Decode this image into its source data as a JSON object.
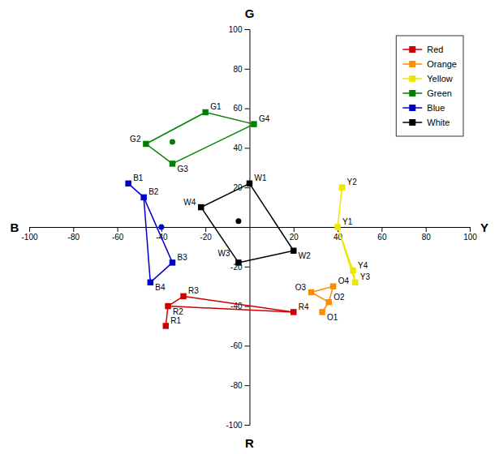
{
  "chart_data": {
    "type": "scatter",
    "xlabel_left": "B",
    "xlabel_right": "Y",
    "ylabel_top": "G",
    "ylabel_bottom": "R",
    "xlim": [
      -100,
      100
    ],
    "ylim": [
      -100,
      100
    ],
    "xticks": [
      -100,
      -80,
      -60,
      -40,
      -20,
      20,
      40,
      60,
      80,
      100
    ],
    "yticks": [
      -100,
      -80,
      -60,
      -40,
      -20,
      20,
      40,
      60,
      80,
      100
    ],
    "legend": "upper right",
    "series": [
      {
        "name": "Red",
        "color": "#cc0000",
        "marker": "square",
        "labels": [
          "R1",
          "R2",
          "R3",
          "R4"
        ],
        "x": [
          -38,
          -37,
          -30,
          20
        ],
        "values": [
          -50,
          -40,
          -35,
          -43
        ],
        "connections": [
          [
            "R1",
            "R2"
          ],
          [
            "R2",
            "R3"
          ],
          [
            "R2",
            "R4"
          ],
          [
            "R3",
            "R4"
          ]
        ]
      },
      {
        "name": "Orange",
        "color": "#ff8c00",
        "marker": "square",
        "labels": [
          "O1",
          "O2",
          "O3",
          "O4"
        ],
        "x": [
          33,
          36,
          28,
          38
        ],
        "values": [
          -43,
          -38,
          -33,
          -30
        ],
        "connections": [
          [
            "O1",
            "O2"
          ],
          [
            "O2",
            "O3"
          ],
          [
            "O3",
            "O4"
          ],
          [
            "O2",
            "O4"
          ]
        ]
      },
      {
        "name": "Yellow",
        "color": "#e8e800",
        "marker": "square",
        "labels": [
          "Y1",
          "Y2",
          "Y3",
          "Y4"
        ],
        "x": [
          40,
          42,
          48,
          47
        ],
        "values": [
          0,
          20,
          -28,
          -22
        ],
        "connections": [
          [
            "Y2",
            "Y1"
          ],
          [
            "Y1",
            "Y3"
          ],
          [
            "Y3",
            "Y4"
          ],
          [
            "Y1",
            "Y4"
          ]
        ]
      },
      {
        "name": "Green",
        "color": "#008000",
        "marker": "square",
        "labels": [
          "G1",
          "G2",
          "G3",
          "G4"
        ],
        "x": [
          -20,
          -47,
          -35,
          2
        ],
        "values": [
          58,
          42,
          32,
          52
        ],
        "connections": [
          [
            "G1",
            "G4"
          ],
          [
            "G1",
            "G2"
          ],
          [
            "G2",
            "G3"
          ],
          [
            "G3",
            "G4"
          ]
        ],
        "center_x": -35,
        "center_y": 43
      },
      {
        "name": "Blue",
        "color": "#0000cc",
        "marker": "square",
        "labels": [
          "B1",
          "B2",
          "B3",
          "B4"
        ],
        "x": [
          -55,
          -48,
          -35,
          -45
        ],
        "values": [
          22,
          15,
          -18,
          -28
        ],
        "connections": [
          [
            "B1",
            "B2"
          ],
          [
            "B2",
            "B3"
          ],
          [
            "B3",
            "B4"
          ],
          [
            "B4",
            "B2"
          ]
        ],
        "center_x": -40,
        "center_y": 0
      },
      {
        "name": "White",
        "color": "#000000",
        "marker": "square",
        "labels": [
          "W1",
          "W2",
          "W3",
          "W4"
        ],
        "x": [
          0,
          20,
          -5,
          -22
        ],
        "values": [
          22,
          -12,
          -18,
          10
        ],
        "connections": [
          [
            "W1",
            "W4"
          ],
          [
            "W4",
            "W3"
          ],
          [
            "W1",
            "W2"
          ],
          [
            "W2",
            "W3"
          ]
        ],
        "center_x": -5,
        "center_y": 3
      }
    ]
  }
}
